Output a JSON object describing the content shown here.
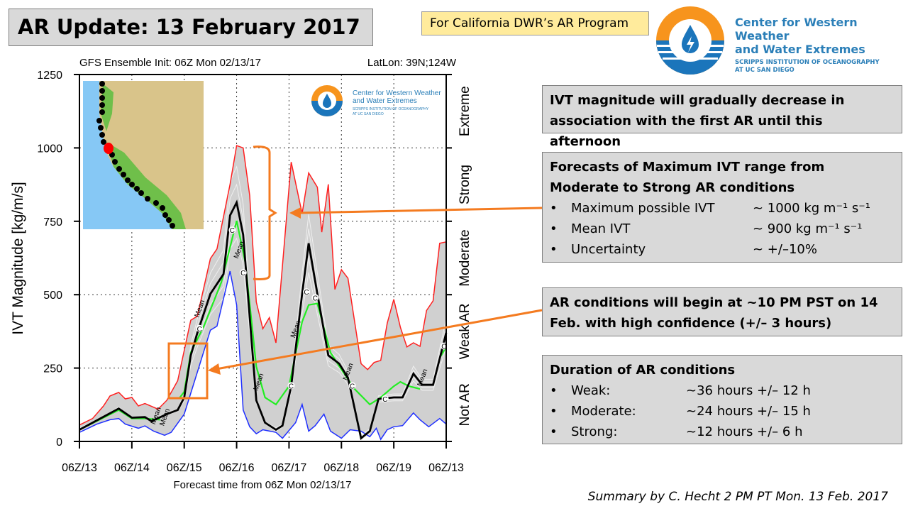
{
  "slide": {
    "title": "AR Update: 13 February 2017",
    "program_label": "For California DWR’s AR Program",
    "logo": {
      "line1": "Center for Western Weather",
      "line2": "and Water Extremes",
      "line3": "SCRIPPS INSTITUTION OF OCEANOGRAPHY",
      "line4": "AT UC SAN DIEGO"
    },
    "footer": "Summary by C. Hecht 2 PM PT Mon. 13 Feb. 2017"
  },
  "boxes": {
    "trend": "IVT magnitude will gradually decrease in association with the first AR until this afternoon",
    "forecast": {
      "heading": "Forecasts of Maximum IVT range from Moderate to Strong AR conditions",
      "items": [
        {
          "label": "Maximum possible IVT",
          "value": "~ 1000 kg m⁻¹ s⁻¹"
        },
        {
          "label": "Mean IVT",
          "value": "~ 900 kg m⁻¹ s⁻¹"
        },
        {
          "label": "Uncertainty",
          "value": "~ +/–10%"
        }
      ]
    },
    "onset": "AR conditions will begin at ~10 PM PST on 14 Feb. with high confidence (+/– 3 hours)",
    "duration": {
      "heading": "Duration of AR conditions",
      "items": [
        {
          "label": "Weak:",
          "value": "~36 hours +/– 12 h"
        },
        {
          "label": "Moderate:",
          "value": "~24 hours +/– 15 h"
        },
        {
          "label": "Strong:",
          "value": "~12 hours +/– 6 h"
        }
      ]
    }
  },
  "colors": {
    "max": "#ff2020",
    "min": "#2030ff",
    "mean": "#000000",
    "control": "#22ee22",
    "spread": "#d0d0d0",
    "annotation": "#f47b20"
  },
  "chart_data": {
    "type": "line",
    "title": "GFS Ensemble Init: 06Z Mon 02/13/17",
    "location": "LatLon: 39N;124W",
    "xlabel": "Forecast time from 06Z Mon 02/13/17",
    "ylabel": "IVT Magnitude [kg/m/s]",
    "xlim_hours": [
      0,
      168
    ],
    "ylim": [
      0,
      1250
    ],
    "yticks": [
      0,
      250,
      500,
      750,
      1000,
      1250
    ],
    "xtick_labels": [
      "06Z/13",
      "06Z/14",
      "06Z/15",
      "06Z/16",
      "06Z/17",
      "06Z/18",
      "06Z/19",
      "06Z/13"
    ],
    "categories": [
      "Not AR",
      "Weak AR",
      "Moderate",
      "Strong",
      "Extreme"
    ],
    "grid": true,
    "line_labels": {
      "mean": "Mean",
      "control": "C"
    },
    "series": [
      {
        "name": "max",
        "points": [
          [
            0,
            56
          ],
          [
            6,
            78
          ],
          [
            11,
            121
          ],
          [
            14,
            155
          ],
          [
            18,
            167
          ],
          [
            21,
            145
          ],
          [
            24,
            150
          ],
          [
            27,
            121
          ],
          [
            30,
            129
          ],
          [
            36,
            110
          ],
          [
            40,
            140
          ],
          [
            45,
            207
          ],
          [
            51,
            413
          ],
          [
            54,
            427
          ],
          [
            60,
            623
          ],
          [
            63,
            656
          ],
          [
            69,
            876
          ],
          [
            72,
            1008
          ],
          [
            75,
            1000
          ],
          [
            78,
            838
          ],
          [
            81,
            475
          ],
          [
            84,
            384
          ],
          [
            87,
            422
          ],
          [
            90,
            336
          ],
          [
            97,
            952
          ],
          [
            102,
            776
          ],
          [
            105,
            915
          ],
          [
            109,
            866
          ],
          [
            111,
            713
          ],
          [
            114,
            876
          ],
          [
            117,
            518
          ],
          [
            120,
            585
          ],
          [
            123,
            556
          ],
          [
            129,
            265
          ],
          [
            132,
            245
          ],
          [
            135,
            269
          ],
          [
            138,
            276
          ],
          [
            141,
            403
          ],
          [
            144,
            484
          ],
          [
            147,
            389
          ],
          [
            150,
            322
          ],
          [
            153,
            336
          ],
          [
            156,
            324
          ],
          [
            159,
            446
          ],
          [
            162,
            479
          ],
          [
            165,
            675
          ],
          [
            168,
            680
          ]
        ]
      },
      {
        "name": "min",
        "points": [
          [
            0,
            31
          ],
          [
            8,
            59
          ],
          [
            14,
            74
          ],
          [
            18,
            78
          ],
          [
            21,
            59
          ],
          [
            27,
            45
          ],
          [
            30,
            53
          ],
          [
            34,
            35
          ],
          [
            39,
            21
          ],
          [
            42,
            31
          ],
          [
            48,
            93
          ],
          [
            54,
            236
          ],
          [
            60,
            379
          ],
          [
            63,
            393
          ],
          [
            69,
            580
          ],
          [
            72,
            465
          ],
          [
            75,
            107
          ],
          [
            78,
            50
          ],
          [
            81,
            26
          ],
          [
            84,
            40
          ],
          [
            90,
            31
          ],
          [
            93,
            11
          ],
          [
            99,
            64
          ],
          [
            102,
            126
          ],
          [
            105,
            35
          ],
          [
            108,
            54
          ],
          [
            112,
            93
          ],
          [
            115,
            35
          ],
          [
            120,
            11
          ],
          [
            124,
            40
          ],
          [
            129,
            35
          ],
          [
            133,
            16
          ],
          [
            136,
            45
          ],
          [
            138,
            7
          ],
          [
            141,
            40
          ],
          [
            144,
            50
          ],
          [
            148,
            54
          ],
          [
            153,
            97
          ],
          [
            156,
            74
          ],
          [
            160,
            50
          ],
          [
            165,
            78
          ],
          [
            168,
            59
          ]
        ]
      },
      {
        "name": "mean",
        "points": [
          [
            0,
            40
          ],
          [
            18,
            112
          ],
          [
            24,
            81
          ],
          [
            30,
            83
          ],
          [
            33,
            69
          ],
          [
            40,
            93
          ],
          [
            45,
            107
          ],
          [
            48,
            150
          ],
          [
            51,
            293
          ],
          [
            54,
            370
          ],
          [
            60,
            503
          ],
          [
            66,
            570
          ],
          [
            69,
            770
          ],
          [
            72,
            814
          ],
          [
            75,
            704
          ],
          [
            81,
            140
          ],
          [
            85,
            64
          ],
          [
            90,
            40
          ],
          [
            93,
            54
          ],
          [
            97,
            188
          ],
          [
            102,
            503
          ],
          [
            105,
            675
          ],
          [
            109,
            503
          ],
          [
            114,
            293
          ],
          [
            119,
            265
          ],
          [
            123,
            217
          ],
          [
            129,
            11
          ],
          [
            133,
            35
          ],
          [
            137,
            145
          ],
          [
            144,
            150
          ],
          [
            148,
            150
          ],
          [
            153,
            231
          ],
          [
            157,
            193
          ],
          [
            162,
            193
          ],
          [
            168,
            370
          ]
        ]
      },
      {
        "name": "control",
        "segments": [
          [
            [
              0,
              40
            ],
            [
              18,
              107
            ],
            [
              24,
              78
            ],
            [
              30,
              78
            ],
            [
              37,
              74
            ]
          ],
          [
            [
              46,
              150
            ],
            [
              48,
              169
            ],
            [
              51,
              303
            ],
            [
              57,
              393
            ],
            [
              65,
              542
            ],
            [
              72,
              752
            ],
            [
              76,
              608
            ],
            [
              81,
              255
            ],
            [
              85,
              150
            ],
            [
              90,
              126
            ],
            [
              96,
              188
            ],
            [
              102,
              408
            ],
            [
              105,
              465
            ],
            [
              109,
              470
            ],
            [
              115,
              303
            ],
            [
              120,
              245
            ],
            [
              126,
              179
            ],
            [
              133,
              126
            ],
            [
              138,
              150
            ],
            [
              144,
              188
            ],
            [
              147,
              203
            ],
            [
              151,
              188
            ],
            [
              156,
              179
            ]
          ],
          [
            [
              165,
              284
            ],
            [
              168,
              322
            ]
          ]
        ]
      }
    ]
  }
}
